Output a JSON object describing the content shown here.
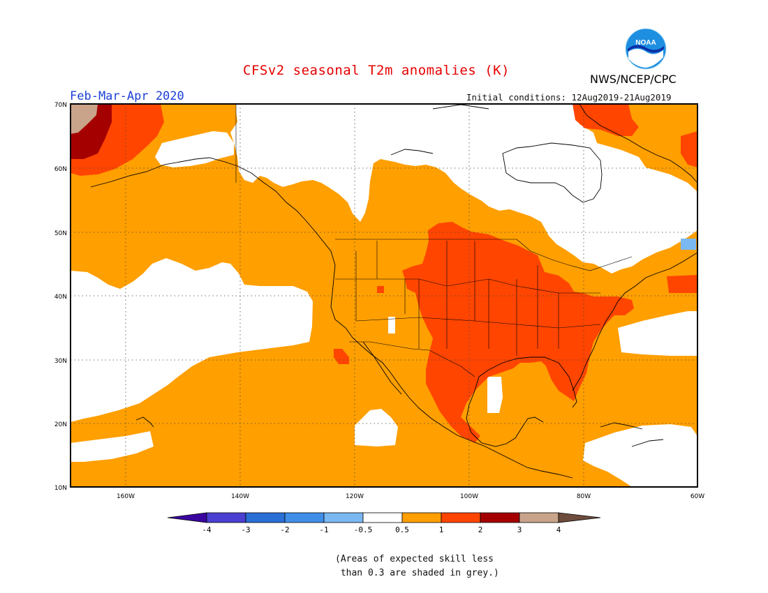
{
  "title": "CFSv2 seasonal T2m anomalies (K)",
  "period": "Feb-Mar-Apr 2020",
  "initial_conditions": "Initial conditions: 12Aug2019-21Aug2019",
  "organization": "NWS/NCEP/CPC",
  "logo_text": "NOAA",
  "logo_icon": "noaa-logo-icon",
  "map": {
    "lat_labels": [
      "70N",
      "60N",
      "50N",
      "40N",
      "30N",
      "20N",
      "10N"
    ],
    "lon_labels": [
      "160W",
      "140W",
      "120W",
      "100W",
      "80W",
      "60W"
    ]
  },
  "colorbar": {
    "tick_labels": [
      "-4",
      "-3",
      "-2",
      "-1",
      "-0.5",
      "0.5",
      "1",
      "2",
      "3",
      "4"
    ],
    "colors": {
      "below_-4": "#3b06a0",
      "-4_to_-3": "#4a3fd1",
      "-3_to_-2": "#2a6fd6",
      "-2_to_-1": "#3f8fe8",
      "-1_to_-0.5": "#7ab8f2",
      "-0.5_to_0.5": "#ffffff",
      "0.5_to_1": "#ff9f00",
      "1_to_2": "#ff4500",
      "2_to_3": "#a50000",
      "3_to_4": "#c9a38a",
      "above_4": "#6e4c3c"
    }
  },
  "footnote": "(Areas of expected skill less\n than 0.3 are shaded in grey.)"
}
